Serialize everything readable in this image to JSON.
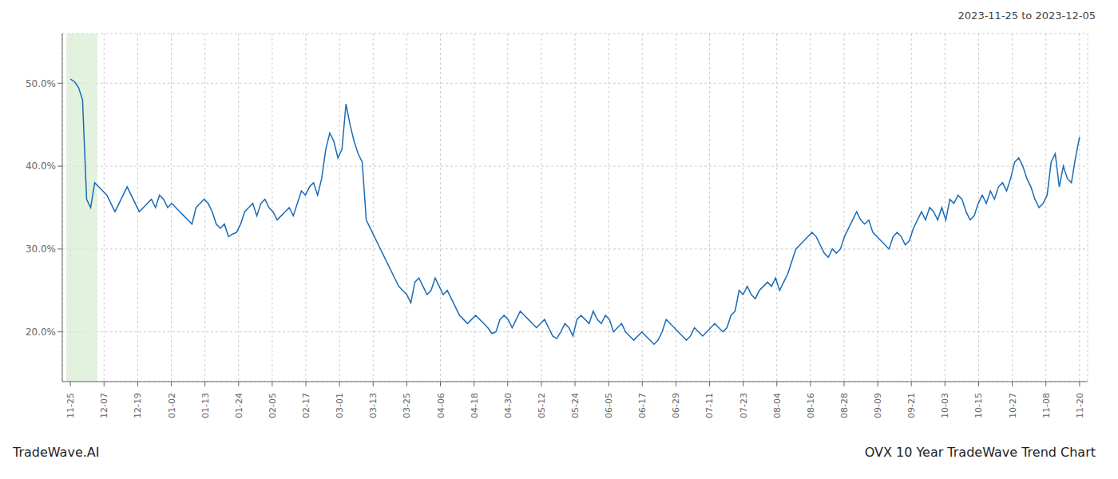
{
  "chart_data": {
    "type": "line",
    "title": "OVX 10 Year TradeWave Trend Chart",
    "subtitle": "2023-11-25 to 2023-12-05",
    "annotations": [
      "TradeWave.AI"
    ],
    "color": "#1a6bb5",
    "grid": true,
    "x": [
      0,
      1,
      2,
      3,
      4,
      5,
      6,
      7,
      8,
      9,
      10,
      11,
      12,
      13,
      14,
      15,
      16,
      17,
      18,
      19,
      20,
      21,
      22,
      23,
      24,
      25,
      26,
      27,
      28,
      29,
      30,
      31,
      32,
      33,
      34,
      35,
      36,
      37,
      38,
      39,
      40,
      41,
      42,
      43,
      44,
      45,
      46,
      47,
      48,
      49,
      50,
      51,
      52,
      53,
      54,
      55,
      56,
      57,
      58,
      59,
      60,
      61,
      62,
      63,
      64,
      65,
      66,
      67,
      68,
      69,
      70,
      71,
      72,
      73,
      74,
      75,
      76,
      77,
      78,
      79,
      80,
      81,
      82,
      83,
      84,
      85,
      86,
      87,
      88,
      89,
      90,
      91,
      92,
      93,
      94,
      95,
      96,
      97,
      98,
      99,
      100,
      101,
      102,
      103,
      104,
      105,
      106,
      107,
      108,
      109,
      110,
      111,
      112,
      113,
      114,
      115,
      116,
      117,
      118,
      119,
      120,
      121,
      122,
      123,
      124,
      125,
      126,
      127,
      128,
      129,
      130,
      131,
      132,
      133,
      134,
      135,
      136,
      137,
      138,
      139,
      140,
      141,
      142,
      143,
      144,
      145,
      146,
      147,
      148,
      149,
      150,
      151,
      152,
      153,
      154,
      155,
      156,
      157,
      158,
      159,
      160,
      161,
      162,
      163,
      164,
      165,
      166,
      167,
      168,
      169,
      170,
      171,
      172,
      173,
      174,
      175,
      176,
      177,
      178,
      179,
      180,
      181,
      182,
      183,
      184,
      185,
      186,
      187,
      188,
      189,
      190,
      191,
      192,
      193,
      194,
      195,
      196,
      197,
      198,
      199,
      200,
      201,
      202,
      203,
      204,
      205,
      206,
      207,
      208,
      209,
      210,
      211,
      212,
      213,
      214,
      215,
      216,
      217,
      218,
      219,
      220,
      221,
      222,
      223,
      224,
      225,
      226,
      227,
      228,
      229,
      230,
      231,
      232,
      233,
      234,
      235,
      236,
      237,
      238,
      239,
      240,
      241,
      242,
      243,
      244,
      245,
      246,
      247,
      248,
      249
    ],
    "values": [
      50.5,
      50.2,
      49.5,
      48.0,
      36.0,
      35.0,
      38.0,
      37.5,
      37.0,
      36.5,
      35.5,
      34.5,
      35.5,
      36.5,
      37.5,
      36.5,
      35.5,
      34.5,
      35.0,
      35.5,
      36.0,
      35.0,
      36.5,
      36.0,
      35.0,
      35.5,
      35.0,
      34.5,
      34.0,
      33.5,
      33.0,
      35.0,
      35.5,
      36.0,
      35.5,
      34.5,
      33.0,
      32.5,
      33.0,
      31.5,
      31.8,
      32.0,
      33.0,
      34.5,
      35.0,
      35.5,
      34.0,
      35.5,
      36.0,
      35.0,
      34.5,
      33.5,
      34.0,
      34.5,
      35.0,
      34.0,
      35.5,
      37.0,
      36.5,
      37.5,
      38.0,
      36.5,
      38.5,
      42.0,
      44.0,
      43.0,
      41.0,
      42.0,
      47.5,
      45.0,
      43.0,
      41.5,
      40.5,
      33.5,
      32.5,
      31.5,
      30.5,
      29.5,
      28.5,
      27.5,
      26.5,
      25.5,
      25.0,
      24.5,
      23.5,
      26.0,
      26.5,
      25.5,
      24.5,
      25.0,
      26.5,
      25.5,
      24.5,
      25.0,
      24.0,
      23.0,
      22.0,
      21.5,
      21.0,
      21.5,
      22.0,
      21.5,
      21.0,
      20.5,
      19.8,
      20.0,
      21.5,
      22.0,
      21.5,
      20.5,
      21.5,
      22.5,
      22.0,
      21.5,
      21.0,
      20.5,
      21.0,
      21.5,
      20.5,
      19.5,
      19.2,
      20.0,
      21.0,
      20.5,
      19.5,
      21.5,
      22.0,
      21.5,
      21.0,
      22.5,
      21.5,
      21.0,
      22.0,
      21.5,
      20.0,
      20.5,
      21.0,
      20.0,
      19.5,
      19.0,
      19.5,
      20.0,
      19.5,
      19.0,
      18.5,
      19.0,
      20.0,
      21.5,
      21.0,
      20.5,
      20.0,
      19.5,
      19.0,
      19.5,
      20.5,
      20.0,
      19.5,
      20.0,
      20.5,
      21.0,
      20.5,
      20.0,
      20.5,
      22.0,
      22.5,
      25.0,
      24.5,
      25.5,
      24.5,
      24.0,
      25.0,
      25.5,
      26.0,
      25.5,
      26.5,
      25.0,
      26.0,
      27.0,
      28.5,
      30.0,
      30.5,
      31.0,
      31.5,
      32.0,
      31.5,
      30.5,
      29.5,
      29.0,
      30.0,
      29.5,
      30.0,
      31.5,
      32.5,
      33.5,
      34.5,
      33.5,
      33.0,
      33.5,
      32.0,
      31.5,
      31.0,
      30.5,
      30.0,
      31.5,
      32.0,
      31.5,
      30.5,
      31.0,
      32.5,
      33.5,
      34.5,
      33.5,
      35.0,
      34.5,
      33.5,
      35.0,
      33.5,
      36.0,
      35.5,
      36.5,
      36.0,
      34.5,
      33.5,
      34.0,
      35.5,
      36.5,
      35.5,
      37.0,
      36.0,
      37.5,
      38.0,
      37.0,
      38.5,
      40.5,
      41.0,
      40.0,
      38.5,
      37.5,
      36.0,
      35.0,
      35.5,
      36.5,
      40.5,
      41.5,
      37.5,
      40.0,
      38.5,
      38.0,
      41.0,
      43.5
    ],
    "xlim": [
      -2,
      251
    ],
    "xticks": [
      {
        "value": 0,
        "label": "11-25"
      },
      {
        "value": 8.3,
        "label": "12-07"
      },
      {
        "value": 16.6,
        "label": "12-19"
      },
      {
        "value": 24.9,
        "label": "01-02"
      },
      {
        "value": 33.2,
        "label": "01-13"
      },
      {
        "value": 41.5,
        "label": "01-24"
      },
      {
        "value": 49.8,
        "label": "02-05"
      },
      {
        "value": 58.1,
        "label": "02-17"
      },
      {
        "value": 66.4,
        "label": "03-01"
      },
      {
        "value": 74.7,
        "label": "03-13"
      },
      {
        "value": 83,
        "label": "03-25"
      },
      {
        "value": 91.3,
        "label": "04-06"
      },
      {
        "value": 99.6,
        "label": "04-18"
      },
      {
        "value": 107.9,
        "label": "04-30"
      },
      {
        "value": 116.2,
        "label": "05-12"
      },
      {
        "value": 124.5,
        "label": "05-24"
      },
      {
        "value": 132.8,
        "label": "06-05"
      },
      {
        "value": 141.1,
        "label": "06-17"
      },
      {
        "value": 149.4,
        "label": "06-29"
      },
      {
        "value": 157.7,
        "label": "07-11"
      },
      {
        "value": 166,
        "label": "07-23"
      },
      {
        "value": 174.3,
        "label": "08-04"
      },
      {
        "value": 182.6,
        "label": "08-16"
      },
      {
        "value": 190.9,
        "label": "08-28"
      },
      {
        "value": 199.2,
        "label": "09-09"
      },
      {
        "value": 207.5,
        "label": "09-21"
      },
      {
        "value": 215.8,
        "label": "10-03"
      },
      {
        "value": 224.1,
        "label": "10-15"
      },
      {
        "value": 232.4,
        "label": "10-27"
      },
      {
        "value": 240.7,
        "label": "11-08"
      },
      {
        "value": 249,
        "label": "11-20"
      }
    ],
    "ylim": [
      14,
      56
    ],
    "yticks": [
      {
        "value": 20,
        "label": "20.0%"
      },
      {
        "value": 30,
        "label": "30.0%"
      },
      {
        "value": 40,
        "label": "40.0%"
      },
      {
        "value": 50,
        "label": "50.0%"
      }
    ],
    "highlight": {
      "xlim": [
        -1,
        6.666666666666667
      ],
      "color": "#d6ecd2"
    }
  }
}
